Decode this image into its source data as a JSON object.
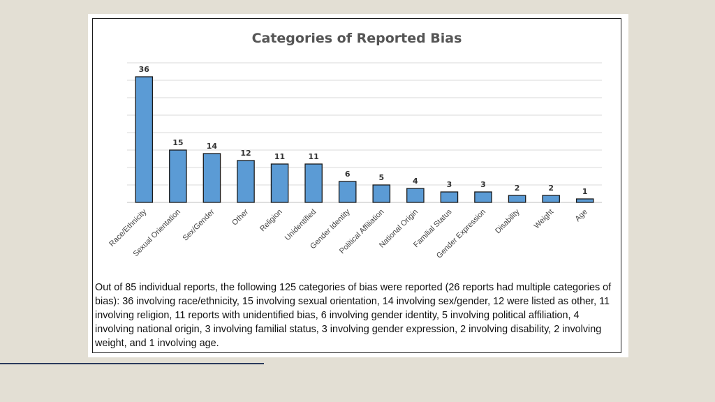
{
  "slide": {
    "caption": "Out of 85 individual reports, the following 125 categories of bias were reported (26 reports had multiple categories of bias): 36 involving race/ethnicity, 15 involving sexual orientation, 14 involving sex/gender, 12 were listed as other, 11 involving religion, 11 reports with unidentified bias, 6 involving gender identity, 5 involving political affiliation, 4 involving national origin, 3 involving familial status, 3 involving gender expression, 2 involving disability, 2 involving weight, and 1 involving age."
  },
  "chart_data": {
    "type": "bar",
    "title": "Categories of Reported Bias",
    "xlabel": "",
    "ylabel": "",
    "categories": [
      "Race/Ethnicity",
      "Sexual Orientation",
      "Sex/Gender",
      "Other",
      "Religion",
      "Unidentified",
      "Gender Identity",
      "Political Affiliation",
      "National Origin",
      "Familial Status",
      "Gender Expression",
      "Disability",
      "Weight",
      "Age"
    ],
    "values": [
      36,
      15,
      14,
      12,
      11,
      11,
      6,
      5,
      4,
      3,
      3,
      2,
      2,
      1
    ],
    "ylim": [
      0,
      40
    ],
    "gridlines": true,
    "data_labels": true,
    "bar_color": "#5b9bd5",
    "bar_edge_color": "#1a1a1a",
    "gridline_color": "#d9d9d9"
  }
}
